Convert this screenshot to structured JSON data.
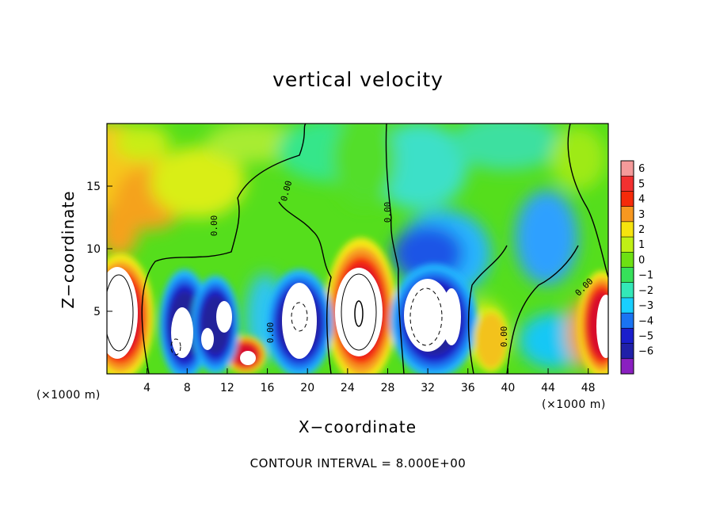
{
  "chart_data": {
    "type": "heatmap",
    "title": "vertical velocity",
    "xlabel": "X−coordinate",
    "ylabel": "Z−coordinate",
    "x_unit": "(×1000 m)",
    "contour_interval_text": "CONTOUR INTERVAL = 8.000E+00",
    "xlim": [
      0,
      50
    ],
    "ylim": [
      0,
      20
    ],
    "x_ticks": [
      4,
      8,
      12,
      16,
      20,
      24,
      28,
      32,
      36,
      40,
      44,
      48
    ],
    "y_ticks": [
      5,
      10,
      15
    ],
    "contour_labels": [
      "0.00",
      "0.00",
      "0.00",
      "0.00",
      "0.00"
    ],
    "colorbar": {
      "min": -6,
      "max": 6,
      "labels": [
        "6",
        "5",
        "4",
        "3",
        "2",
        "1",
        "0",
        "−1",
        "−2",
        "−3",
        "−4",
        "−5",
        "−6"
      ],
      "colors": [
        "#f49a9a",
        "#f23030",
        "#f52a0a",
        "#f79820",
        "#f6e40e",
        "#c0f015",
        "#6de013",
        "#36e05a",
        "#33e8b8",
        "#19cfff",
        "#1a74f2",
        "#1a1ecc",
        "#2020a8",
        "#8a1fc0"
      ]
    },
    "features": [
      {
        "label": "updraft core",
        "x": 25.2,
        "z": 4.9,
        "w": 6
      },
      {
        "label": "updraft core",
        "x": 1.8,
        "z": 4.6,
        "w": 6
      },
      {
        "label": "updraft core",
        "x": 49.2,
        "z": 4.0,
        "w": 6
      },
      {
        "label": "downdraft core",
        "x": 18.8,
        "z": 4.0,
        "w": -6
      },
      {
        "label": "downdraft core",
        "x": 33.5,
        "z": 5.0,
        "w": -6
      },
      {
        "label": "downdraft core",
        "x": 7.5,
        "z": 3.5,
        "w": -6
      },
      {
        "label": "downdraft core",
        "x": 11.8,
        "z": 4.0,
        "w": -6
      },
      {
        "label": "updraft",
        "x": 13.4,
        "z": 1.7,
        "w": 5
      }
    ]
  }
}
